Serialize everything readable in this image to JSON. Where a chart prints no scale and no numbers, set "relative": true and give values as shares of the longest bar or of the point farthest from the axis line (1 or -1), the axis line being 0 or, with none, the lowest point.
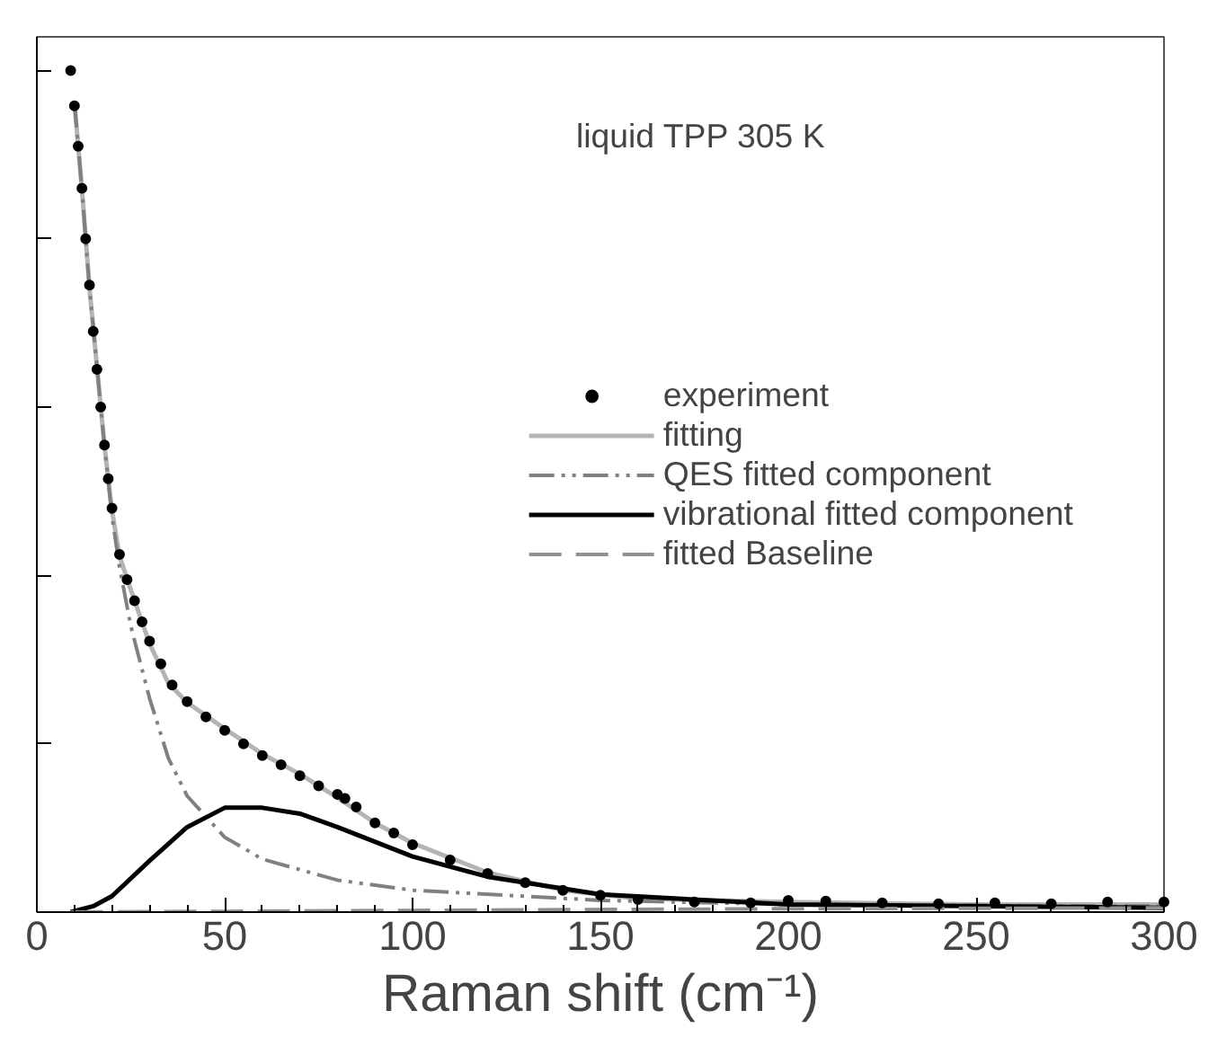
{
  "chart_data": {
    "type": "line",
    "relative": true,
    "xlabel": "Raman shift (cm⁻¹)",
    "annotations": [
      "liquid TPP 305 K"
    ],
    "xlim": [
      0,
      300
    ],
    "xticks": [
      0,
      50,
      100,
      150,
      200,
      250,
      300
    ],
    "legend": "right",
    "grid": false,
    "series": [
      {
        "name": "experiment",
        "type": "scatter",
        "marker": "circle",
        "color": "#000000",
        "x": [
          9,
          10,
          11,
          12,
          13,
          14,
          15,
          16,
          17,
          18,
          19,
          20,
          22,
          24,
          26,
          28,
          30,
          33,
          36,
          40,
          45,
          50,
          55,
          60,
          65,
          70,
          75,
          80,
          82,
          85,
          90,
          95,
          100,
          110,
          120,
          130,
          140,
          150,
          160,
          175,
          190,
          200,
          210,
          225,
          240,
          255,
          270,
          285,
          300
        ],
        "values": [
          1.0,
          0.958,
          0.91,
          0.86,
          0.8,
          0.745,
          0.69,
          0.645,
          0.6,
          0.555,
          0.515,
          0.48,
          0.425,
          0.395,
          0.37,
          0.345,
          0.322,
          0.295,
          0.27,
          0.25,
          0.232,
          0.216,
          0.2,
          0.186,
          0.175,
          0.162,
          0.15,
          0.14,
          0.135,
          0.125,
          0.106,
          0.094,
          0.08,
          0.062,
          0.046,
          0.035,
          0.026,
          0.02,
          0.015,
          0.012,
          0.011,
          0.014,
          0.013,
          0.011,
          0.01,
          0.011,
          0.01,
          0.012,
          0.012
        ]
      },
      {
        "name": "fitting",
        "line_style": "solid",
        "color": "#b4b4b4",
        "x": [
          10,
          12,
          14,
          16,
          18,
          20,
          22,
          25,
          30,
          35,
          40,
          50,
          60,
          70,
          80,
          90,
          100,
          120,
          140,
          160,
          200,
          250,
          300
        ],
        "values": [
          0.962,
          0.859,
          0.742,
          0.648,
          0.554,
          0.477,
          0.423,
          0.383,
          0.319,
          0.272,
          0.249,
          0.218,
          0.188,
          0.164,
          0.136,
          0.106,
          0.082,
          0.047,
          0.026,
          0.016,
          0.012,
          0.009,
          0.009
        ]
      },
      {
        "name": "QES fitted component",
        "line_style": "dotted",
        "color": "#808080",
        "x": [
          10,
          12,
          14,
          16,
          18,
          20,
          22,
          25,
          30,
          35,
          40,
          50,
          60,
          80,
          100,
          150,
          200,
          300
        ],
        "values": [
          0.962,
          0.859,
          0.742,
          0.648,
          0.554,
          0.47,
          0.41,
          0.34,
          0.254,
          0.183,
          0.138,
          0.089,
          0.063,
          0.038,
          0.026,
          0.014,
          0.009,
          0.007
        ]
      },
      {
        "name": "vibrational fitted component",
        "line_style": "solid",
        "color": "#000000",
        "x": [
          9,
          15,
          20,
          30,
          40,
          50,
          60,
          70,
          80,
          100,
          120,
          150,
          200,
          300
        ],
        "values": [
          0.0,
          0.007,
          0.019,
          0.061,
          0.101,
          0.124,
          0.124,
          0.117,
          0.101,
          0.066,
          0.042,
          0.021,
          0.009,
          0.005
        ]
      },
      {
        "name": "fitted Baseline",
        "line_style": "dashed",
        "color": "#909090",
        "x": [
          9,
          100,
          200,
          300
        ],
        "values": [
          0.0,
          0.002,
          0.004,
          0.005
        ]
      }
    ]
  }
}
